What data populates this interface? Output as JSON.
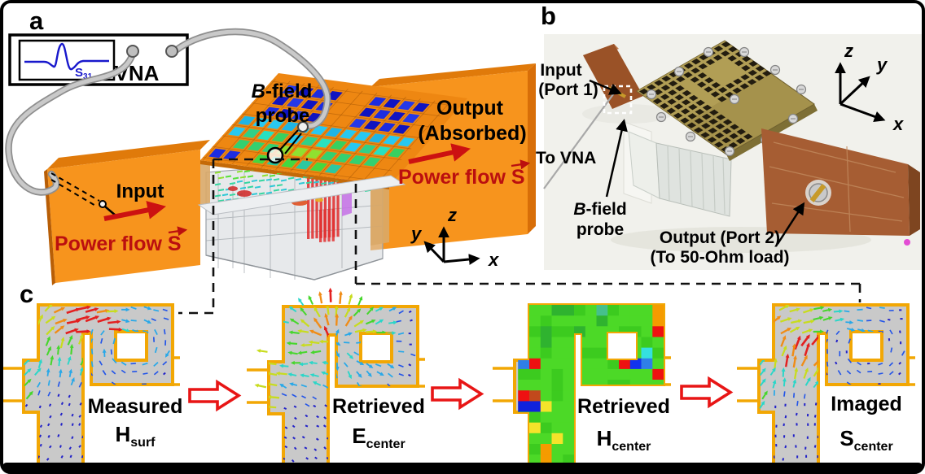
{
  "figure": {
    "panel_a": {
      "label": "a",
      "vna": {
        "name_label": "VNA",
        "inset_signal": "S",
        "inset_signal_sub": "31"
      },
      "probe_label_line1": "B-field",
      "probe_label_line2": "probe",
      "input_label": "Input",
      "output_label_line1": "Output",
      "output_label_line2": "(Absorbed)",
      "power_flow_label": "Power flow",
      "power_flow_symbol": "S",
      "axes": {
        "x": "x",
        "y": "y",
        "z": "z"
      }
    },
    "panel_b": {
      "label": "b",
      "input_port_line1": "Input",
      "input_port_line2": "(Port 1)",
      "to_vna_label": "To VNA",
      "probe_label_line1": "B-field",
      "probe_label_line2": "probe",
      "output_port_line1": "Output (Port 2)",
      "output_port_line2": "(To 50-Ohm load)",
      "axes": {
        "x": "x",
        "y": "y",
        "z": "z"
      }
    },
    "panel_c": {
      "label": "c",
      "steps": [
        {
          "title": "Measured",
          "symbol": "H",
          "subscript": "surf",
          "field_type": "quiver",
          "pattern": "swirl"
        },
        {
          "title": "Retrieved",
          "symbol": "E",
          "subscript": "center",
          "field_type": "quiver",
          "pattern": "radiate"
        },
        {
          "title": "Retrieved",
          "symbol": "H",
          "subscript": "center",
          "field_type": "heatmap",
          "pattern": "heatmap"
        },
        {
          "title": "Imaged",
          "symbol": "S",
          "subscript": "center",
          "field_type": "quiver",
          "pattern": "stream"
        }
      ],
      "heatmap": {
        "cols": 12,
        "rows": 15,
        "default_color": "#4CD927",
        "special_cells": [
          [
            11,
            0,
            "#F59B00"
          ],
          [
            11,
            1,
            "#F59B00"
          ],
          [
            11,
            2,
            "#EE1111"
          ],
          [
            6,
            0,
            "#46C08C"
          ],
          [
            2,
            0,
            "#2FB32F"
          ],
          [
            3,
            0,
            "#2FB32F"
          ],
          [
            6,
            1,
            "#2FB32F"
          ],
          [
            1,
            2,
            "#2FB32F"
          ],
          [
            1,
            3,
            "#2FB32F"
          ],
          [
            4,
            2,
            "#2FB32F"
          ],
          [
            10,
            4,
            "#35E0E0"
          ],
          [
            8,
            5,
            "#EE1111"
          ],
          [
            9,
            5,
            "#1133EE"
          ],
          [
            10,
            5,
            "#2F7FE8"
          ],
          [
            11,
            6,
            "#EE1111"
          ],
          [
            -1,
            5,
            "#2F7FE8"
          ],
          [
            0,
            5,
            "#EE1111"
          ],
          [
            -1,
            8,
            "#EE1111"
          ],
          [
            0,
            8,
            "#C2491C"
          ],
          [
            -1,
            9,
            "#1122DD"
          ],
          [
            0,
            9,
            "#1122DD"
          ],
          [
            1,
            9,
            "#F5E32A"
          ],
          [
            0,
            11,
            "#F5E32A"
          ],
          [
            2,
            12,
            "#F5E32A"
          ],
          [
            1,
            13,
            "#F59B00"
          ],
          [
            1,
            14,
            "#F59B00"
          ]
        ]
      }
    },
    "colors": {
      "waveguide_orange": "#F7941D",
      "plate_orange": "#EE8712",
      "structure_border_gold": "#F2A704",
      "structure_fill_gray": "#C9C9C9",
      "arrow_red": "#CC1111",
      "power_flow_dark_red": "#BB0F0F",
      "signal_blue": "#1818CC",
      "frame_black": "#000000"
    }
  }
}
